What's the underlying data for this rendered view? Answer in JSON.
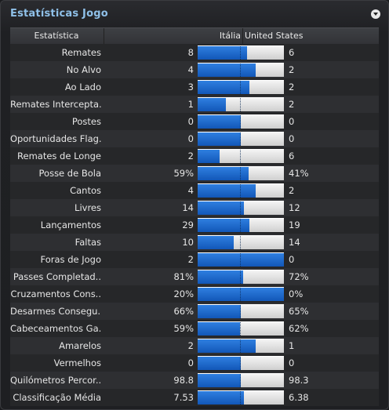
{
  "title": "Estatísticas Jogo",
  "header": {
    "stat": "Estatística",
    "home": "Itália",
    "away": "United States"
  },
  "colors": {
    "home": "#1a66cc",
    "away": "#e6e6e6",
    "title": "#8fc0e8"
  },
  "rows": [
    {
      "label": "Remates",
      "home": "8",
      "away": "6",
      "home_share": 0.57
    },
    {
      "label": "No Alvo",
      "home": "4",
      "away": "2",
      "home_share": 0.67
    },
    {
      "label": "Ao Lado",
      "home": "3",
      "away": "2",
      "home_share": 0.6
    },
    {
      "label": "Remates Intercepta..",
      "home": "1",
      "away": "2",
      "home_share": 0.33
    },
    {
      "label": "Postes",
      "home": "0",
      "away": "0",
      "home_share": 0.5
    },
    {
      "label": "Oportunidades Flag..",
      "home": "0",
      "away": "0",
      "home_share": 0.5
    },
    {
      "label": "Remates de Longe",
      "home": "2",
      "away": "6",
      "home_share": 0.25
    },
    {
      "label": "Posse de Bola",
      "home": "59%",
      "away": "41%",
      "home_share": 0.59
    },
    {
      "label": "Cantos",
      "home": "4",
      "away": "2",
      "home_share": 0.67
    },
    {
      "label": "Livres",
      "home": "14",
      "away": "12",
      "home_share": 0.54
    },
    {
      "label": "Lançamentos",
      "home": "29",
      "away": "19",
      "home_share": 0.6
    },
    {
      "label": "Faltas",
      "home": "10",
      "away": "14",
      "home_share": 0.42
    },
    {
      "label": "Foras de Jogo",
      "home": "2",
      "away": "0",
      "home_share": 1.0
    },
    {
      "label": "Passes Completad..",
      "home": "81%",
      "away": "72%",
      "home_share": 0.53
    },
    {
      "label": "Cruzamentos Cons..",
      "home": "20%",
      "away": "0%",
      "home_share": 1.0
    },
    {
      "label": "Desarmes Consegu..",
      "home": "66%",
      "away": "65%",
      "home_share": 0.5
    },
    {
      "label": "Cabeceamentos Ga..",
      "home": "59%",
      "away": "62%",
      "home_share": 0.49
    },
    {
      "label": "Amarelos",
      "home": "2",
      "away": "1",
      "home_share": 0.67
    },
    {
      "label": "Vermelhos",
      "home": "0",
      "away": "0",
      "home_share": 0.5
    },
    {
      "label": "Quilómetros Percor..",
      "home": "98.8",
      "away": "98.3",
      "home_share": 0.5
    },
    {
      "label": "Classificação Média",
      "home": "7.53",
      "away": "6.38",
      "home_share": 0.54
    }
  ]
}
